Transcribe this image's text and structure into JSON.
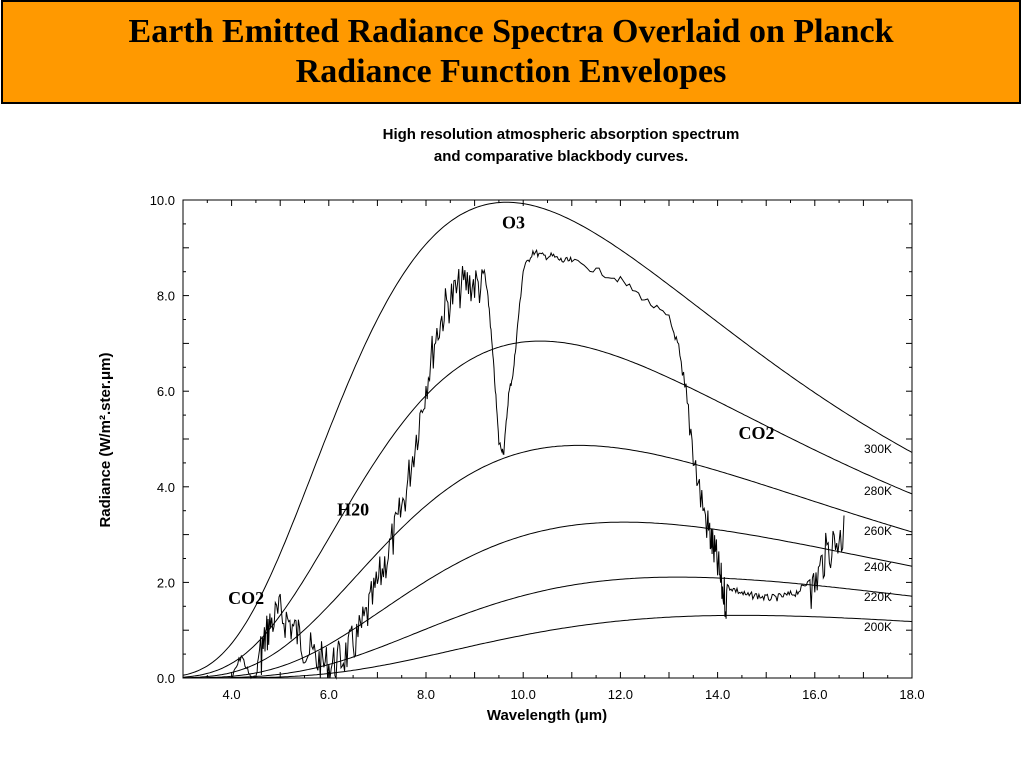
{
  "slide": {
    "title_line1": "Earth Emitted Radiance Spectra Overlaid on Planck",
    "title_line2": "Radiance Function Envelopes",
    "title_bg": "#ff9900"
  },
  "chart_data": {
    "type": "line",
    "title_line1": "High resolution atmospheric absorption spectrum",
    "title_line2": "and comparative blackbody curves.",
    "xlabel": "Wavelength (μm)",
    "ylabel": "Radiance (W/m².ster.μm)",
    "xlim": [
      3.0,
      18.0
    ],
    "ylim": [
      0.0,
      10.0
    ],
    "x_ticks": [
      "4.0",
      "6.0",
      "8.0",
      "10.0",
      "12.0",
      "14.0",
      "16.0",
      "18.0"
    ],
    "y_ticks": [
      "0.0",
      "2.0",
      "4.0",
      "6.0",
      "8.0",
      "10.0"
    ],
    "grid": false,
    "blackbody_curves": [
      {
        "name": "300K",
        "temperature": 300,
        "label_value": 300
      },
      {
        "name": "280K",
        "temperature": 280,
        "label_value": 280
      },
      {
        "name": "260K",
        "temperature": 260,
        "label_value": 260
      },
      {
        "name": "240K",
        "temperature": 240,
        "label_value": 240
      },
      {
        "name": "220K",
        "temperature": 220,
        "label_value": 220
      },
      {
        "name": "200K",
        "temperature": 200,
        "label_value": 200
      }
    ],
    "spectrum": {
      "points": [
        [
          4.0,
          0.05
        ],
        [
          4.2,
          0.55
        ],
        [
          4.4,
          0.05
        ],
        [
          4.5,
          0.05
        ],
        [
          4.6,
          0.9
        ],
        [
          4.7,
          1.3
        ],
        [
          4.8,
          1.6
        ],
        [
          5.0,
          1.8
        ],
        [
          5.2,
          1.6
        ],
        [
          5.4,
          1.3
        ],
        [
          5.6,
          1.0
        ],
        [
          5.8,
          0.8
        ],
        [
          6.0,
          0.7
        ],
        [
          6.2,
          0.8
        ],
        [
          6.4,
          1.0
        ],
        [
          6.6,
          1.3
        ],
        [
          6.8,
          1.8
        ],
        [
          7.0,
          2.4
        ],
        [
          7.2,
          3.0
        ],
        [
          7.4,
          3.6
        ],
        [
          7.6,
          4.4
        ],
        [
          7.8,
          5.5
        ],
        [
          8.0,
          6.6
        ],
        [
          8.2,
          7.6
        ],
        [
          8.4,
          8.2
        ],
        [
          8.6,
          8.5
        ],
        [
          8.8,
          8.7
        ],
        [
          9.0,
          8.7
        ],
        [
          9.2,
          8.6
        ],
        [
          9.3,
          7.8
        ],
        [
          9.4,
          6.5
        ],
        [
          9.5,
          5.0
        ],
        [
          9.6,
          4.8
        ],
        [
          9.7,
          6.0
        ],
        [
          9.8,
          6.5
        ],
        [
          9.9,
          7.6
        ],
        [
          10.0,
          8.6
        ],
        [
          10.2,
          9.0
        ],
        [
          10.4,
          8.9
        ],
        [
          10.6,
          8.9
        ],
        [
          10.8,
          8.8
        ],
        [
          11.0,
          8.8
        ],
        [
          11.5,
          8.6
        ],
        [
          12.0,
          8.4
        ],
        [
          12.5,
          8.0
        ],
        [
          13.0,
          7.6
        ],
        [
          13.2,
          7.0
        ],
        [
          13.4,
          6.0
        ],
        [
          13.6,
          4.5
        ],
        [
          13.8,
          3.6
        ],
        [
          13.9,
          3.2
        ],
        [
          14.0,
          2.8
        ],
        [
          14.1,
          2.3
        ],
        [
          14.2,
          2.0
        ],
        [
          14.4,
          1.9
        ],
        [
          14.6,
          1.8
        ],
        [
          14.8,
          1.8
        ],
        [
          15.0,
          1.75
        ],
        [
          15.2,
          1.75
        ],
        [
          15.4,
          1.8
        ],
        [
          15.6,
          1.85
        ],
        [
          15.8,
          2.0
        ],
        [
          16.0,
          2.4
        ],
        [
          16.2,
          3.0
        ],
        [
          16.4,
          3.3
        ],
        [
          16.6,
          3.4
        ]
      ]
    },
    "annotations": [
      {
        "text": "O3",
        "x": 9.8,
        "y": 9.4
      },
      {
        "text": "CO2",
        "x": 14.8,
        "y": 5.0
      },
      {
        "text": "H20",
        "x": 6.5,
        "y": 3.4
      },
      {
        "text": "CO2",
        "x": 4.3,
        "y": 1.55
      }
    ]
  }
}
